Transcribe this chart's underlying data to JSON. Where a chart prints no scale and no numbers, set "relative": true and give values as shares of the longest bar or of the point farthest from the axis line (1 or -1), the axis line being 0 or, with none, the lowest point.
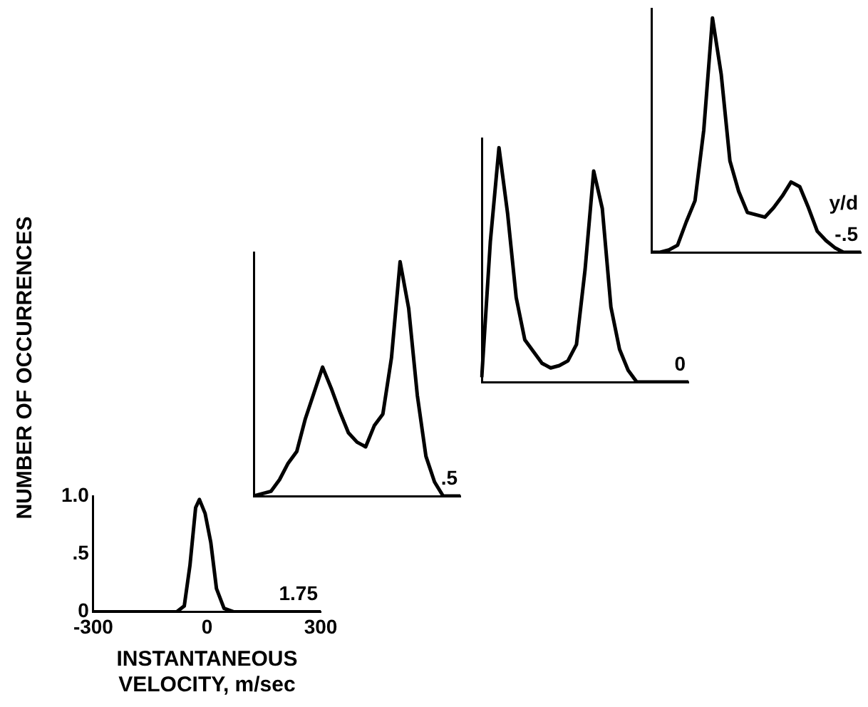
{
  "chart_data": [
    {
      "type": "line",
      "ylabel": "NUMBER OF OCCURRENCES",
      "xlabel": "INSTANTANEOUS VELOCITY, m/sec",
      "annotations": [
        "1.75"
      ],
      "color": "#000000",
      "marker": "none",
      "legend": false,
      "xlim": [
        -300,
        300
      ],
      "ylim": [
        0,
        1.0
      ],
      "xticks": [
        -300,
        0,
        300
      ],
      "yticks": [
        0,
        {
          "value": 0.5,
          "label": ".5"
        },
        {
          "value": 1.0,
          "label": "1.0"
        }
      ],
      "x": [
        -300,
        -80,
        -60,
        -45,
        -30,
        -20,
        -5,
        10,
        25,
        45,
        70,
        300
      ],
      "values": [
        0,
        0,
        0.05,
        0.4,
        0.9,
        0.97,
        0.85,
        0.6,
        0.2,
        0.03,
        0,
        0
      ]
    },
    {
      "type": "line",
      "relative": true,
      "annotations": [
        ".5"
      ],
      "color": "#000000",
      "marker": "none",
      "legend": false,
      "categories": [
        null,
        null,
        null,
        null,
        null,
        null,
        null,
        null,
        null,
        null,
        null,
        null,
        null,
        null,
        null,
        null,
        null,
        null,
        null,
        null,
        null,
        null,
        null,
        null,
        null
      ],
      "values": [
        0,
        0.01,
        0.02,
        0.07,
        0.14,
        0.19,
        0.33,
        0.44,
        0.55,
        0.46,
        0.36,
        0.27,
        0.23,
        0.21,
        0.3,
        0.35,
        0.59,
        1.0,
        0.8,
        0.43,
        0.17,
        0.06,
        0,
        0,
        0
      ]
    },
    {
      "type": "line",
      "relative": true,
      "annotations": [
        "0"
      ],
      "color": "#000000",
      "marker": "none",
      "legend": false,
      "categories": [
        null,
        null,
        null,
        null,
        null,
        null,
        null,
        null,
        null,
        null,
        null,
        null,
        null,
        null,
        null,
        null,
        null,
        null,
        null,
        null,
        null,
        null,
        null,
        null,
        null
      ],
      "values": [
        0.02,
        0.6,
        1.0,
        0.72,
        0.36,
        0.18,
        0.13,
        0.08,
        0.06,
        0.07,
        0.09,
        0.16,
        0.48,
        0.9,
        0.74,
        0.32,
        0.14,
        0.05,
        0,
        0,
        0,
        0,
        0,
        0,
        0
      ]
    },
    {
      "type": "line",
      "relative": true,
      "annotations": [
        "y/d",
        "-.5"
      ],
      "color": "#000000",
      "marker": "none",
      "legend": false,
      "categories": [
        null,
        null,
        null,
        null,
        null,
        null,
        null,
        null,
        null,
        null,
        null,
        null,
        null,
        null,
        null,
        null,
        null,
        null,
        null,
        null,
        null,
        null,
        null,
        null,
        null
      ],
      "values": [
        0,
        0,
        0.01,
        0.03,
        0.13,
        0.22,
        0.52,
        1.0,
        0.76,
        0.39,
        0.26,
        0.17,
        0.16,
        0.15,
        0.19,
        0.24,
        0.3,
        0.28,
        0.19,
        0.09,
        0.05,
        0.02,
        0,
        0,
        0
      ]
    }
  ]
}
